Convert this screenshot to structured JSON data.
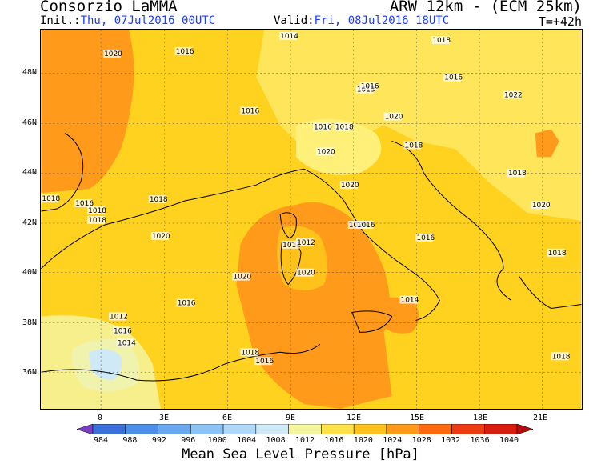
{
  "header": {
    "org": "Consorzio LaMMA",
    "model": "ARW 12km - (ECM 25km)",
    "init_label": "Init.:",
    "init_value": "Thu, 07Jul2016 00UTC",
    "valid_label": "Valid:",
    "valid_value": "Fri, 08Jul2016 18UTC",
    "step": "T=+42h"
  },
  "map": {
    "lat_labels": [
      "48N",
      "46N",
      "44N",
      "42N",
      "40N",
      "38N",
      "36N"
    ],
    "lon_labels": [
      "0",
      "3E",
      "6E",
      "9E",
      "12E",
      "15E",
      "18E",
      "21E"
    ],
    "isobar_labels": [
      "1020",
      "1016",
      "1014",
      "1018",
      "1016",
      "1013",
      "1016",
      "1016",
      "1016",
      "1018",
      "1020",
      "1022",
      "1020",
      "1018",
      "1016",
      "1018",
      "1018",
      "1018",
      "1020",
      "1020",
      "1018",
      "1018",
      "1020",
      "1020",
      "1016",
      "1014",
      "1012",
      "1016",
      "1020",
      "1020",
      "1014",
      "1016",
      "1012",
      "1016",
      "1014",
      "1018",
      "1016",
      "1018",
      "1018"
    ]
  },
  "colorbar": {
    "labels": [
      "984",
      "988",
      "992",
      "996",
      "1000",
      "1004",
      "1008",
      "1012",
      "1016",
      "1020",
      "1024",
      "1028",
      "1032",
      "1036",
      "1040"
    ],
    "colors": [
      "#7b3fbf",
      "#3b6fd9",
      "#4d8fe8",
      "#6aa8f0",
      "#8dc3f5",
      "#b0d8f7",
      "#cfe9f7",
      "#f5f5a0",
      "#ffe14a",
      "#ffc21a",
      "#ff9a1a",
      "#ff6a10",
      "#ef3b12",
      "#d81c10",
      "#b30d0a"
    ],
    "title": "Mean Sea Level Pressure [hPa]"
  }
}
